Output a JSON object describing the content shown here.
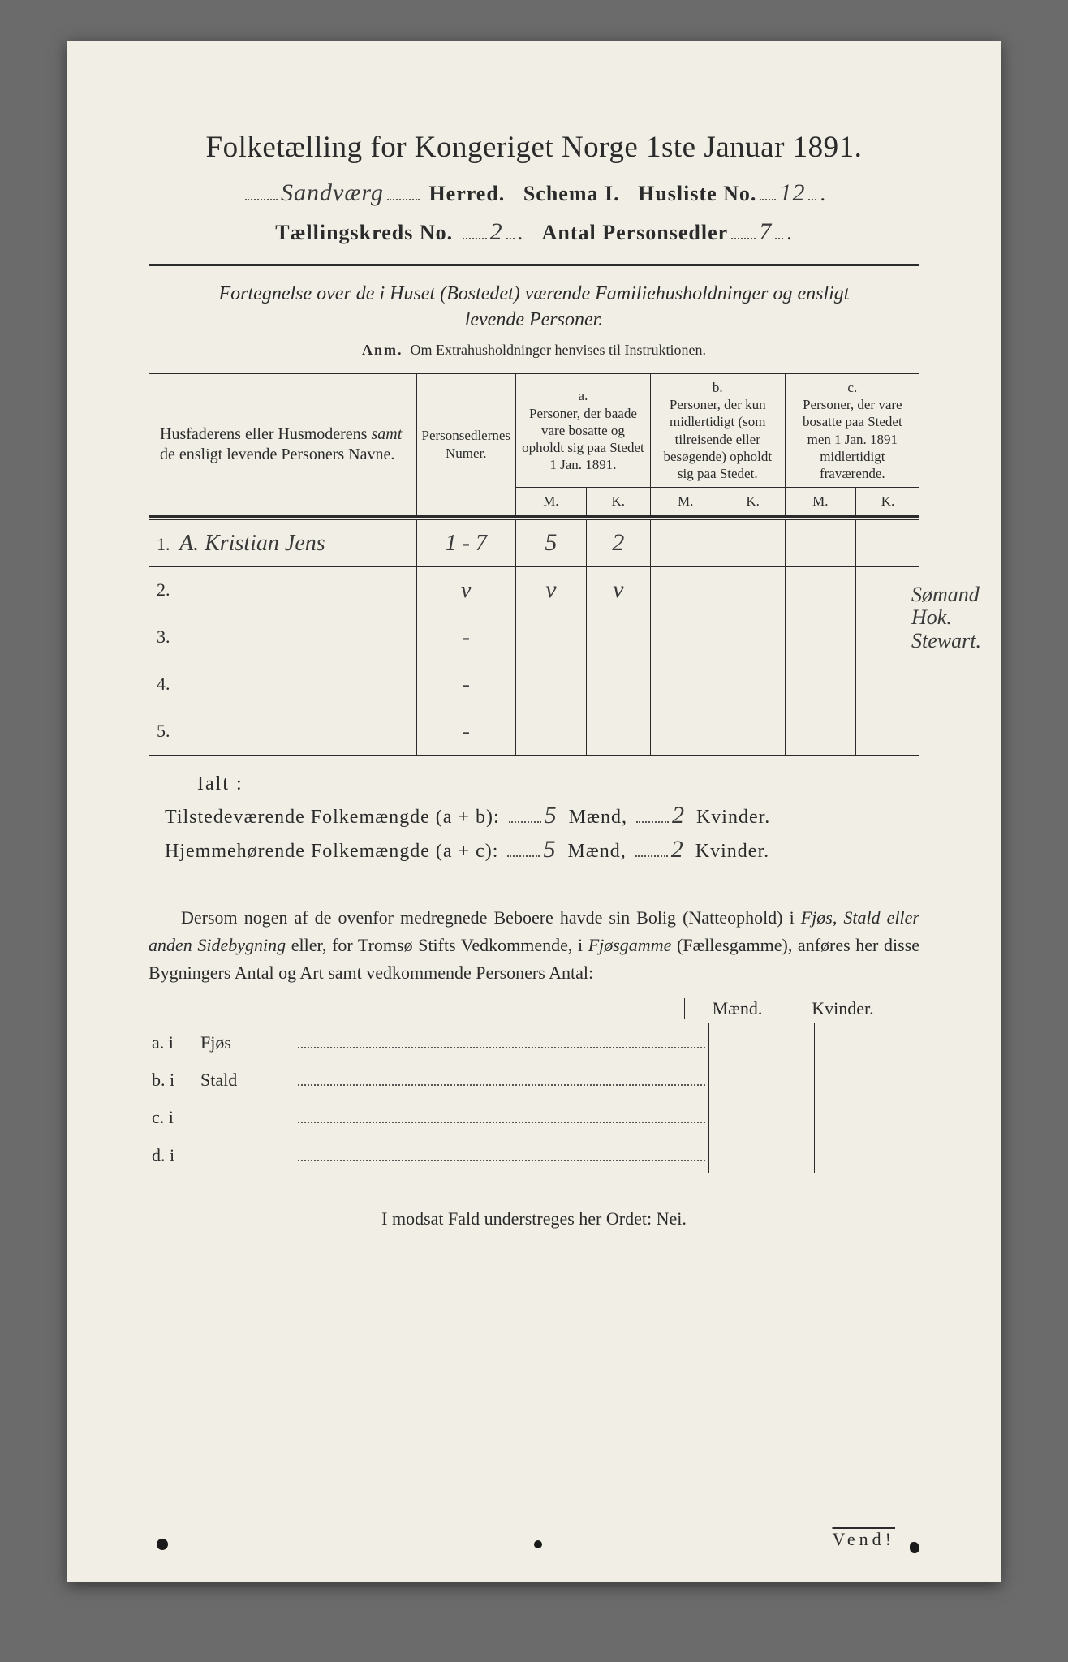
{
  "colors": {
    "page_bg": "#f1efe5",
    "body_bg": "#6b6b6b",
    "ink": "#2b2b2b",
    "rule": "#2b2b2b",
    "dot": "#555555",
    "handwriting": "#3a3a3a"
  },
  "typography": {
    "title_pt": 37,
    "line_pt": 26,
    "subtitle_pt": 24,
    "body_pt": 22,
    "table_head_pt": 17,
    "handwriting_pt": 30
  },
  "header": {
    "title": "Folketælling for Kongeriget Norge 1ste Januar 1891.",
    "herred_hand": "Sandværg",
    "herred_label": "Herred.",
    "schema_label": "Schema I.",
    "husliste_label": "Husliste No.",
    "husliste_hand": "12",
    "kreds_label": "Tællingskreds No.",
    "kreds_hand": "2",
    "antal_label": "Antal Personsedler",
    "antal_hand": "7"
  },
  "subtitle": {
    "line1": "Fortegnelse over de i Huset (Bostedet) værende Familiehusholdninger og ensligt",
    "line2": "levende Personer.",
    "anm_label": "Anm.",
    "anm_text": "Om Extrahusholdninger henvises til Instruktionen."
  },
  "table": {
    "col1": "Husfaderens eller Husmoderens samt de ensligt levende Personers Navne.",
    "col2": "Personsedlernes Numer.",
    "colA_label": "a.",
    "colA": "Personer, der baade vare bosatte og opholdt sig paa Stedet 1 Jan. 1891.",
    "colB_label": "b.",
    "colB": "Personer, der kun midlertidigt (som tilreisende eller besøgende) opholdt sig paa Stedet.",
    "colC_label": "c.",
    "colC": "Personer, der vare bosatte paa Stedet men 1 Jan. 1891 midlertidigt fraværende.",
    "M": "M.",
    "K": "K.",
    "rows": [
      {
        "num": "1.",
        "name": "A. Kristian Jens",
        "personsedler": "1 - 7",
        "aM": "5",
        "aK": "2",
        "bM": "",
        "bK": "",
        "cM": "",
        "cK": ""
      },
      {
        "num": "2.",
        "name": "",
        "personsedler": "v",
        "aM": "v",
        "aK": "v",
        "bM": "",
        "bK": "",
        "cM": "",
        "cK": ""
      },
      {
        "num": "3.",
        "name": "",
        "personsedler": "-",
        "aM": "",
        "aK": "",
        "bM": "",
        "bK": "",
        "cM": "",
        "cK": ""
      },
      {
        "num": "4.",
        "name": "",
        "personsedler": "-",
        "aM": "",
        "aK": "",
        "bM": "",
        "bK": "",
        "cM": "",
        "cK": ""
      },
      {
        "num": "5.",
        "name": "",
        "personsedler": "-",
        "aM": "",
        "aK": "",
        "bM": "",
        "bK": "",
        "cM": "",
        "cK": ""
      }
    ],
    "margin_note": "Sømand Hok. Stewart."
  },
  "totals": {
    "ialt": "Ialt :",
    "line1_a": "Tilstedeværende Folkemængde (a + b):",
    "line1_m": "5",
    "line1_mlabel": "Mænd,",
    "line1_k": "2",
    "line1_klabel": "Kvinder.",
    "line2_a": "Hjemmehørende Folkemængde (a + c):",
    "line2_m": "5",
    "line2_mlabel": "Mænd,",
    "line2_k": "2",
    "line2_klabel": "Kvinder."
  },
  "paragraph": {
    "text_a": "Dersom nogen af de ovenfor medregnede Beboere havde sin Bolig (Natteophold) i ",
    "em1": "Fjøs, Stald eller anden Sidebygning",
    "text_b": " eller, for Tromsø Stifts Vedkommende, i ",
    "em2": "Fjøsgamme",
    "text_c": " (Fællesgamme), anføres her disse Bygningers Antal og Art samt vedkommende Personers Antal:"
  },
  "small_table": {
    "maend": "Mænd.",
    "kvinder": "Kvinder.",
    "rows": [
      {
        "lbl": "a.  i",
        "type": "Fjøs"
      },
      {
        "lbl": "b.  i",
        "type": "Stald"
      },
      {
        "lbl": "c.  i",
        "type": ""
      },
      {
        "lbl": "d.  i",
        "type": ""
      }
    ]
  },
  "footer": {
    "nei_line": "I modsat Fald understreges her Ordet: Nei.",
    "vend": "Vend!"
  }
}
